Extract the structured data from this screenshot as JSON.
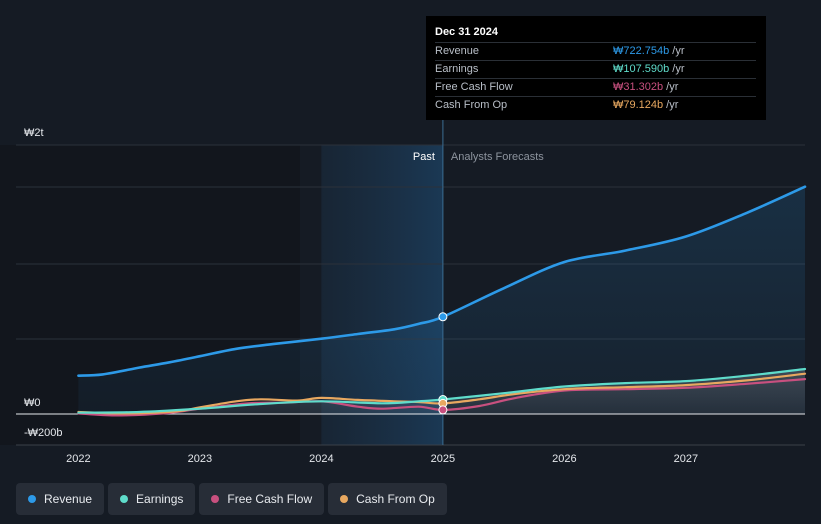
{
  "colors": {
    "revenue": "#2d9ae8",
    "earnings": "#5fdccb",
    "fcf": "#c8507f",
    "cfo": "#e8a860",
    "background": "#151b24",
    "past_shade": "#1b3248"
  },
  "tooltip": {
    "date": "Dec 31 2024",
    "rows": [
      {
        "name": "Revenue",
        "value": "₩722.754b",
        "unit": "/yr",
        "color": "#2d9ae8"
      },
      {
        "name": "Earnings",
        "value": "₩107.590b",
        "unit": "/yr",
        "color": "#5fdccb"
      },
      {
        "name": "Free Cash Flow",
        "value": "₩31.302b",
        "unit": "/yr",
        "color": "#c8507f"
      },
      {
        "name": "Cash From Op",
        "value": "₩79.124b",
        "unit": "/yr",
        "color": "#e8a860"
      }
    ]
  },
  "legend": [
    {
      "label": "Revenue",
      "color": "#2d9ae8"
    },
    {
      "label": "Earnings",
      "color": "#5fdccb"
    },
    {
      "label": "Free Cash Flow",
      "color": "#c8507f"
    },
    {
      "label": "Cash From Op",
      "color": "#e8a860"
    }
  ],
  "chart_data": {
    "type": "line",
    "title": "",
    "xlabel": "",
    "ylabel": "",
    "region_labels": {
      "past": "Past",
      "forecast": "Analysts Forecasts"
    },
    "y_tick_labels": [
      {
        "value": 2000,
        "label": "₩2t"
      },
      {
        "value": 0,
        "label": "₩0"
      },
      {
        "value": -200,
        "label": "-₩200b"
      }
    ],
    "x_tick_labels": [
      "2022",
      "2023",
      "2024",
      "2025",
      "2026",
      "2027"
    ],
    "x_ticks": [
      2022,
      2023,
      2024,
      2025,
      2026,
      2027
    ],
    "xlim": [
      2021.75,
      2027.98
    ],
    "ylim": [
      -230,
      2000
    ],
    "past_region": [
      2024.0,
      2025.0
    ],
    "units": "₩ billions",
    "series": [
      {
        "name": "Revenue",
        "key": "revenue",
        "points": [
          [
            2022.0,
            285
          ],
          [
            2022.2,
            295
          ],
          [
            2022.5,
            345
          ],
          [
            2022.75,
            385
          ],
          [
            2023.0,
            430
          ],
          [
            2023.3,
            485
          ],
          [
            2023.6,
            520
          ],
          [
            2024.0,
            560
          ],
          [
            2024.3,
            595
          ],
          [
            2024.6,
            630
          ],
          [
            2024.8,
            670
          ],
          [
            2025.0,
            723
          ],
          [
            2025.5,
            935
          ],
          [
            2026.0,
            1130
          ],
          [
            2026.5,
            1215
          ],
          [
            2027.0,
            1320
          ],
          [
            2027.5,
            1495
          ],
          [
            2027.98,
            1690
          ]
        ]
      },
      {
        "name": "Earnings",
        "key": "earnings",
        "points": [
          [
            2022.0,
            10
          ],
          [
            2022.5,
            15
          ],
          [
            2023.0,
            40
          ],
          [
            2023.5,
            75
          ],
          [
            2024.0,
            95
          ],
          [
            2024.5,
            80
          ],
          [
            2024.8,
            95
          ],
          [
            2025.0,
            108
          ],
          [
            2025.5,
            155
          ],
          [
            2026.0,
            205
          ],
          [
            2026.5,
            230
          ],
          [
            2027.0,
            245
          ],
          [
            2027.5,
            285
          ],
          [
            2027.98,
            335
          ]
        ]
      },
      {
        "name": "Free Cash Flow",
        "key": "fcf",
        "points": [
          [
            2022.0,
            5
          ],
          [
            2022.3,
            -10
          ],
          [
            2022.7,
            5
          ],
          [
            2023.0,
            40
          ],
          [
            2023.4,
            80
          ],
          [
            2023.7,
            85
          ],
          [
            2024.0,
            95
          ],
          [
            2024.3,
            55
          ],
          [
            2024.5,
            40
          ],
          [
            2024.8,
            55
          ],
          [
            2025.0,
            31
          ],
          [
            2025.3,
            60
          ],
          [
            2025.6,
            120
          ],
          [
            2026.0,
            175
          ],
          [
            2026.5,
            185
          ],
          [
            2027.0,
            195
          ],
          [
            2027.5,
            225
          ],
          [
            2027.98,
            260
          ]
        ]
      },
      {
        "name": "Cash From Op",
        "key": "cfo",
        "points": [
          [
            2022.0,
            15
          ],
          [
            2022.4,
            5
          ],
          [
            2022.8,
            20
          ],
          [
            2023.0,
            50
          ],
          [
            2023.3,
            95
          ],
          [
            2023.5,
            110
          ],
          [
            2023.8,
            100
          ],
          [
            2024.0,
            120
          ],
          [
            2024.3,
            105
          ],
          [
            2024.6,
            95
          ],
          [
            2024.8,
            90
          ],
          [
            2025.0,
            79
          ],
          [
            2025.3,
            110
          ],
          [
            2025.6,
            150
          ],
          [
            2026.0,
            185
          ],
          [
            2026.5,
            200
          ],
          [
            2027.0,
            215
          ],
          [
            2027.5,
            250
          ],
          [
            2027.98,
            300
          ]
        ]
      }
    ],
    "highlight": {
      "x": 2025.0,
      "values": {
        "revenue": 723,
        "earnings": 108,
        "fcf": 31,
        "cfo": 79
      }
    },
    "grid": true
  }
}
